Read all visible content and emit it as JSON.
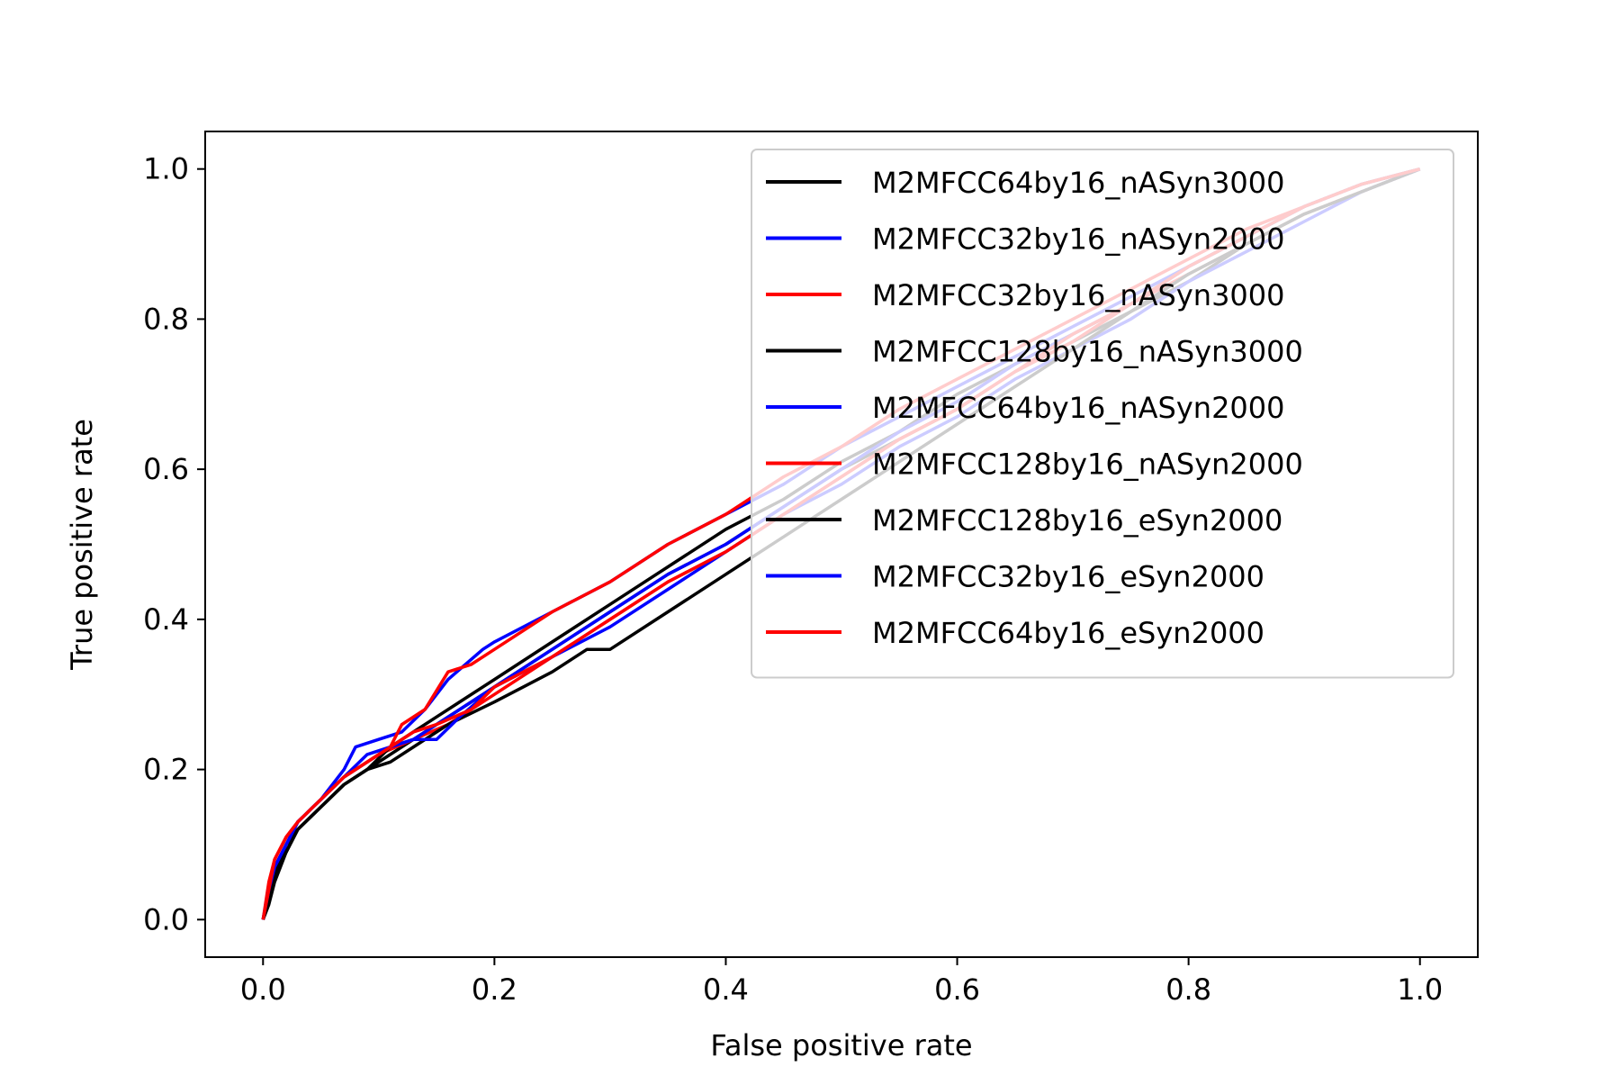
{
  "chart_data": {
    "type": "line",
    "title": "",
    "xlabel": "False positive rate",
    "ylabel": "True positive rate",
    "xlim": [
      -0.05,
      1.05
    ],
    "ylim": [
      -0.05,
      1.05
    ],
    "xticks": [
      0.0,
      0.2,
      0.4,
      0.6,
      0.8,
      1.0
    ],
    "yticks": [
      0.0,
      0.2,
      0.4,
      0.6,
      0.8,
      1.0
    ],
    "xtick_labels": [
      "0.0",
      "0.2",
      "0.4",
      "0.6",
      "0.8",
      "1.0"
    ],
    "ytick_labels": [
      "0.0",
      "0.2",
      "0.4",
      "0.6",
      "0.8",
      "1.0"
    ],
    "grid": false,
    "legend_position": "top-right",
    "series": [
      {
        "name": "M2MFCC64by16_nASyn3000",
        "color": "#000000",
        "x": [
          0.0,
          0.005,
          0.01,
          0.02,
          0.03,
          0.05,
          0.07,
          0.09,
          0.11,
          0.13,
          0.16,
          0.2,
          0.25,
          0.3,
          0.35,
          0.4,
          0.45,
          0.5,
          0.55,
          0.6,
          0.65,
          0.7,
          0.75,
          0.8,
          0.85,
          0.9,
          0.95,
          1.0
        ],
        "y": [
          0.0,
          0.03,
          0.06,
          0.09,
          0.12,
          0.15,
          0.18,
          0.2,
          0.22,
          0.24,
          0.27,
          0.31,
          0.36,
          0.41,
          0.46,
          0.5,
          0.55,
          0.6,
          0.64,
          0.68,
          0.73,
          0.77,
          0.81,
          0.85,
          0.9,
          0.94,
          0.97,
          1.0
        ]
      },
      {
        "name": "M2MFCC32by16_nASyn2000",
        "color": "#0000ff",
        "x": [
          0.0,
          0.005,
          0.01,
          0.02,
          0.03,
          0.05,
          0.07,
          0.08,
          0.1,
          0.12,
          0.14,
          0.16,
          0.19,
          0.2,
          0.25,
          0.3,
          0.35,
          0.4,
          0.45,
          0.5,
          0.55,
          0.6,
          0.65,
          0.7,
          0.75,
          0.8,
          0.85,
          0.9,
          0.95,
          1.0
        ],
        "y": [
          0.0,
          0.04,
          0.07,
          0.1,
          0.13,
          0.16,
          0.2,
          0.23,
          0.24,
          0.25,
          0.28,
          0.32,
          0.36,
          0.37,
          0.41,
          0.45,
          0.5,
          0.54,
          0.58,
          0.63,
          0.67,
          0.71,
          0.75,
          0.79,
          0.83,
          0.87,
          0.91,
          0.95,
          0.98,
          1.0
        ]
      },
      {
        "name": "M2MFCC32by16_nASyn3000",
        "color": "#ff0000",
        "x": [
          0.0,
          0.005,
          0.01,
          0.02,
          0.03,
          0.05,
          0.07,
          0.1,
          0.13,
          0.16,
          0.2,
          0.25,
          0.3,
          0.35,
          0.4,
          0.45,
          0.5,
          0.55,
          0.6,
          0.65,
          0.7,
          0.75,
          0.8,
          0.85,
          0.9,
          0.95,
          1.0
        ],
        "y": [
          0.0,
          0.04,
          0.07,
          0.1,
          0.13,
          0.16,
          0.19,
          0.22,
          0.24,
          0.26,
          0.3,
          0.35,
          0.4,
          0.45,
          0.49,
          0.54,
          0.59,
          0.64,
          0.68,
          0.73,
          0.77,
          0.82,
          0.86,
          0.9,
          0.94,
          0.97,
          1.0
        ]
      },
      {
        "name": "M2MFCC128by16_nASyn3000",
        "color": "#000000",
        "x": [
          0.0,
          0.005,
          0.01,
          0.02,
          0.03,
          0.05,
          0.07,
          0.09,
          0.11,
          0.13,
          0.15,
          0.2,
          0.25,
          0.3,
          0.35,
          0.4,
          0.45,
          0.5,
          0.55,
          0.6,
          0.65,
          0.7,
          0.75,
          0.8,
          0.85,
          0.9,
          0.95,
          1.0
        ],
        "y": [
          0.0,
          0.03,
          0.06,
          0.1,
          0.12,
          0.15,
          0.18,
          0.2,
          0.23,
          0.25,
          0.27,
          0.32,
          0.37,
          0.42,
          0.47,
          0.52,
          0.56,
          0.61,
          0.65,
          0.7,
          0.74,
          0.78,
          0.82,
          0.87,
          0.91,
          0.95,
          0.98,
          1.0
        ]
      },
      {
        "name": "M2MFCC64by16_nASyn2000",
        "color": "#0000ff",
        "x": [
          0.0,
          0.005,
          0.01,
          0.02,
          0.03,
          0.05,
          0.07,
          0.09,
          0.11,
          0.13,
          0.15,
          0.18,
          0.2,
          0.25,
          0.3,
          0.35,
          0.4,
          0.45,
          0.5,
          0.55,
          0.6,
          0.65,
          0.7,
          0.75,
          0.8,
          0.85,
          0.9,
          0.95,
          1.0
        ],
        "y": [
          0.0,
          0.04,
          0.07,
          0.1,
          0.13,
          0.16,
          0.19,
          0.21,
          0.23,
          0.24,
          0.26,
          0.29,
          0.31,
          0.35,
          0.39,
          0.44,
          0.49,
          0.54,
          0.58,
          0.63,
          0.67,
          0.72,
          0.76,
          0.8,
          0.85,
          0.89,
          0.93,
          0.97,
          1.0
        ]
      },
      {
        "name": "M2MFCC128by16_nASyn2000",
        "color": "#ff0000",
        "x": [
          0.0,
          0.005,
          0.01,
          0.02,
          0.03,
          0.05,
          0.07,
          0.09,
          0.11,
          0.12,
          0.14,
          0.16,
          0.18,
          0.2,
          0.25,
          0.3,
          0.35,
          0.4,
          0.45,
          0.5,
          0.55,
          0.6,
          0.65,
          0.7,
          0.75,
          0.8,
          0.85,
          0.9,
          0.95,
          1.0
        ],
        "y": [
          0.0,
          0.05,
          0.08,
          0.11,
          0.13,
          0.16,
          0.19,
          0.21,
          0.23,
          0.26,
          0.28,
          0.33,
          0.34,
          0.36,
          0.41,
          0.45,
          0.5,
          0.54,
          0.59,
          0.63,
          0.68,
          0.72,
          0.76,
          0.8,
          0.84,
          0.88,
          0.92,
          0.95,
          0.98,
          1.0
        ]
      },
      {
        "name": "M2MFCC128by16_eSyn2000",
        "color": "#000000",
        "x": [
          0.0,
          0.005,
          0.01,
          0.02,
          0.03,
          0.05,
          0.07,
          0.09,
          0.11,
          0.13,
          0.16,
          0.2,
          0.25,
          0.28,
          0.3,
          0.35,
          0.4,
          0.45,
          0.5,
          0.55,
          0.6,
          0.65,
          0.7,
          0.75,
          0.8,
          0.85,
          0.9,
          0.95,
          1.0
        ],
        "y": [
          0.0,
          0.02,
          0.05,
          0.09,
          0.12,
          0.15,
          0.18,
          0.2,
          0.21,
          0.23,
          0.26,
          0.29,
          0.33,
          0.36,
          0.36,
          0.41,
          0.46,
          0.51,
          0.56,
          0.61,
          0.66,
          0.71,
          0.76,
          0.81,
          0.86,
          0.9,
          0.94,
          0.97,
          1.0
        ]
      },
      {
        "name": "M2MFCC32by16_eSyn2000",
        "color": "#0000ff",
        "x": [
          0.0,
          0.005,
          0.01,
          0.02,
          0.03,
          0.05,
          0.07,
          0.09,
          0.11,
          0.13,
          0.15,
          0.17,
          0.2,
          0.25,
          0.3,
          0.35,
          0.4,
          0.45,
          0.5,
          0.55,
          0.6,
          0.65,
          0.7,
          0.75,
          0.8,
          0.85,
          0.9,
          0.95,
          1.0
        ],
        "y": [
          0.0,
          0.04,
          0.07,
          0.1,
          0.13,
          0.16,
          0.19,
          0.22,
          0.23,
          0.24,
          0.24,
          0.27,
          0.31,
          0.36,
          0.41,
          0.46,
          0.5,
          0.55,
          0.6,
          0.65,
          0.69,
          0.74,
          0.78,
          0.82,
          0.87,
          0.91,
          0.95,
          0.98,
          1.0
        ]
      },
      {
        "name": "M2MFCC64by16_eSyn2000",
        "color": "#ff0000",
        "x": [
          0.0,
          0.005,
          0.01,
          0.02,
          0.03,
          0.05,
          0.07,
          0.09,
          0.11,
          0.13,
          0.15,
          0.18,
          0.2,
          0.25,
          0.3,
          0.35,
          0.4,
          0.45,
          0.5,
          0.55,
          0.6,
          0.65,
          0.7,
          0.75,
          0.8,
          0.85,
          0.9,
          0.95,
          1.0
        ],
        "y": [
          0.0,
          0.04,
          0.08,
          0.11,
          0.13,
          0.16,
          0.19,
          0.21,
          0.23,
          0.25,
          0.26,
          0.28,
          0.31,
          0.35,
          0.4,
          0.45,
          0.49,
          0.54,
          0.59,
          0.64,
          0.68,
          0.73,
          0.78,
          0.82,
          0.87,
          0.91,
          0.95,
          0.98,
          1.0
        ]
      }
    ]
  }
}
